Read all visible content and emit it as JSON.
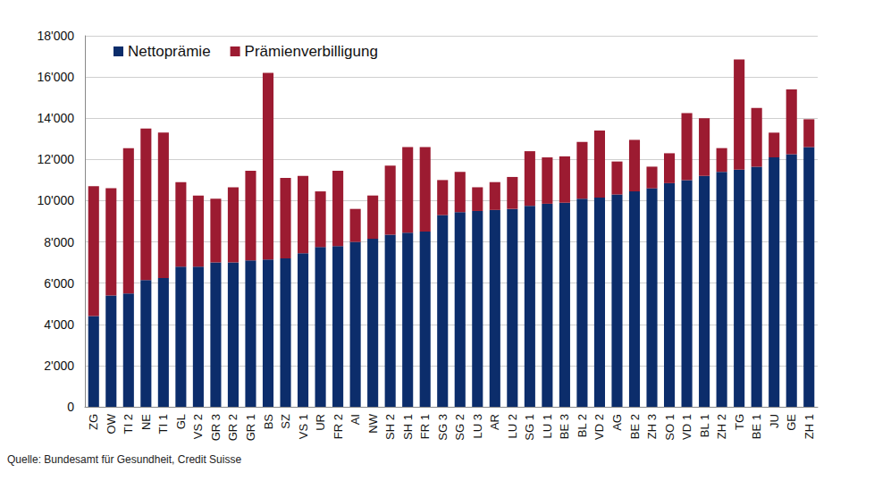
{
  "chart_data": {
    "type": "bar",
    "stacked": true,
    "grid": true,
    "legend": "top-left",
    "annotations": [
      "Quelle: Bundesamt für Gesundheit, Credit Suisse"
    ],
    "categories": [
      "ZG",
      "OW",
      "TI 2",
      "NE",
      "TI 1",
      "GL",
      "VS 2",
      "GR 3",
      "GR 2",
      "GR 1",
      "BS",
      "SZ",
      "VS 1",
      "UR",
      "FR 2",
      "AI",
      "NW",
      "SH 2",
      "SH 1",
      "FR 1",
      "SG 3",
      "SG 2",
      "LU 3",
      "AR",
      "LU 2",
      "SG 1",
      "LU 1",
      "BE 3",
      "BL 2",
      "VD 2",
      "AG",
      "BE 2",
      "ZH 3",
      "SO 1",
      "VD 1",
      "BL 1",
      "ZH 2",
      "TG",
      "BE 1",
      "JU",
      "GE",
      "ZH 1"
    ],
    "series": [
      {
        "name": "Nettoprämie",
        "color": "#0c2d6b",
        "values": [
          4400,
          5400,
          5500,
          6150,
          6250,
          6800,
          6800,
          7000,
          7000,
          7100,
          7150,
          7200,
          7450,
          7750,
          7800,
          8000,
          8150,
          8350,
          8450,
          8500,
          9300,
          9450,
          9500,
          9550,
          9600,
          9750,
          9850,
          9900,
          10100,
          10150,
          10300,
          10450,
          10600,
          10850,
          11000,
          11200,
          11400,
          11500,
          11650,
          12100,
          12250,
          12600
        ]
      },
      {
        "name": "Prämienverbilligung",
        "color": "#9c1b31",
        "values": [
          6300,
          5200,
          7050,
          7350,
          7050,
          4100,
          3450,
          3100,
          3650,
          4350,
          9050,
          3900,
          3750,
          2700,
          3650,
          1600,
          2100,
          3350,
          4150,
          4100,
          1700,
          1950,
          1150,
          1350,
          1550,
          2650,
          2250,
          2250,
          2750,
          3250,
          1600,
          2500,
          1050,
          1450,
          3250,
          2800,
          1150,
          5350,
          2850,
          1200,
          3150,
          1350
        ]
      }
    ],
    "ylim": [
      0,
      18000
    ],
    "yticks": [
      0,
      {
        "value": 2000,
        "label": "2'000"
      },
      {
        "value": 4000,
        "label": "4'000"
      },
      {
        "value": 6000,
        "label": "6'000"
      },
      {
        "value": 8000,
        "label": "8'000"
      },
      {
        "value": 10000,
        "label": "10'000"
      },
      {
        "value": 12000,
        "label": "12'000"
      },
      {
        "value": 14000,
        "label": "14'000"
      },
      {
        "value": 16000,
        "label": "16'000"
      },
      {
        "value": 18000,
        "label": "18'000"
      }
    ]
  }
}
